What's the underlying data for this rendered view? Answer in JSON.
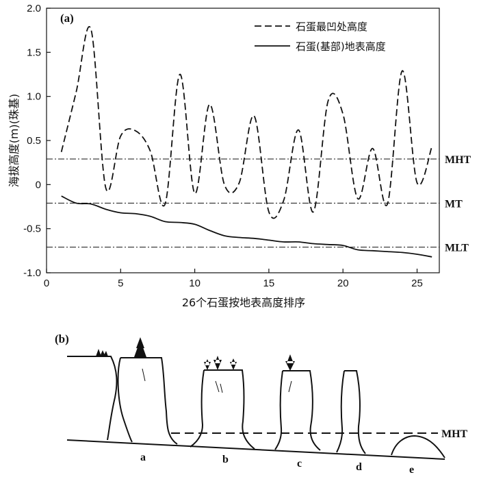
{
  "chart_data": {
    "type": "line",
    "panel_label": "(a)",
    "xlabel": "26个石蛋按地表高度排序",
    "ylabel": "海拔高度(m)(珠基)",
    "xlim": [
      0,
      26.5
    ],
    "ylim": [
      -1.0,
      2.0
    ],
    "xticks": [
      0,
      5,
      10,
      15,
      20,
      25
    ],
    "yticks": [
      2.0,
      1.5,
      1.0,
      0.5,
      0,
      -0.5,
      -1.0
    ],
    "ytick_labels": [
      "2.0",
      "1.5",
      "1.0",
      "0.5",
      "0",
      "-0.5",
      "-1.0"
    ],
    "grid": false,
    "legend_position": "top-right",
    "x": [
      1,
      2,
      3,
      4,
      5,
      6,
      7,
      8,
      9,
      10,
      11,
      12,
      13,
      14,
      15,
      16,
      17,
      18,
      19,
      20,
      21,
      22,
      23,
      24,
      25,
      26
    ],
    "series": [
      {
        "name": "石蛋最凹处高度",
        "style": "dashed",
        "values": [
          0.37,
          1.05,
          1.76,
          -0.04,
          0.55,
          0.61,
          0.38,
          -0.22,
          1.25,
          -0.1,
          0.91,
          0.0,
          0.02,
          0.78,
          -0.31,
          -0.18,
          0.62,
          -0.31,
          0.95,
          0.8,
          -0.16,
          0.41,
          -0.22,
          1.29,
          0.02,
          0.43
        ]
      },
      {
        "name": "石蛋(基部)地表高度",
        "style": "solid",
        "values": [
          -0.13,
          -0.21,
          -0.22,
          -0.28,
          -0.32,
          -0.33,
          -0.36,
          -0.42,
          -0.43,
          -0.45,
          -0.52,
          -0.58,
          -0.6,
          -0.61,
          -0.63,
          -0.65,
          -0.65,
          -0.67,
          -0.68,
          -0.69,
          -0.74,
          -0.75,
          -0.76,
          -0.77,
          -0.79,
          -0.82
        ]
      }
    ],
    "reference_lines": [
      {
        "label": "MHT",
        "value": 0.29
      },
      {
        "label": "MT",
        "value": -0.21
      },
      {
        "label": "MLT",
        "value": -0.71
      }
    ]
  },
  "diagram": {
    "panel_label": "(b)",
    "mht_label": "MHT",
    "stack_labels": [
      "a",
      "b",
      "c",
      "d",
      "e"
    ]
  }
}
